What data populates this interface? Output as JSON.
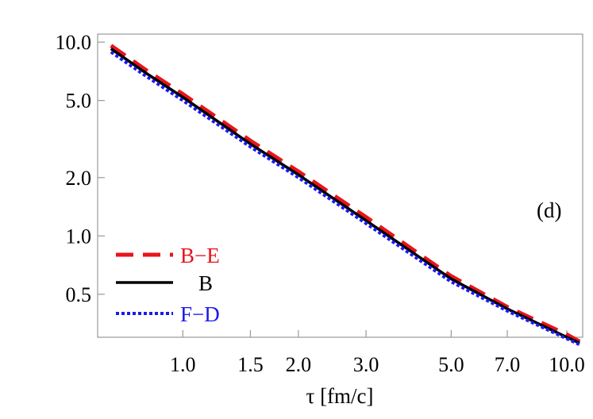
{
  "chart_data": {
    "type": "line",
    "xscale": "log",
    "yscale": "log",
    "xlim": [
      0.6,
      11.0
    ],
    "ylim": [
      0.3,
      11.0
    ],
    "x_ticks": [
      1.0,
      1.5,
      2.0,
      3.0,
      5.0,
      7.0,
      10.0
    ],
    "x_tick_labels": [
      "1.0",
      "1.5",
      "2.0",
      "3.0",
      "5.0",
      "7.0",
      "10.0"
    ],
    "y_ticks": [
      0.5,
      1.0,
      2.0,
      5.0,
      10.0
    ],
    "y_tick_labels": [
      "0.5",
      "1.0",
      "2.0",
      "5.0",
      "10.0"
    ],
    "xlabel": "τ [fm/c]",
    "ylabel": "",
    "annotation": "(d)",
    "grid": false,
    "legend_position": "bottom-left",
    "series": [
      {
        "name": "B−E",
        "color": "#e8141b",
        "style": "dashed",
        "x": [
          0.65,
          0.8,
          1.0,
          1.5,
          2.0,
          3.0,
          5.0,
          7.0,
          10.0,
          10.8
        ],
        "y": [
          9.6,
          7.2,
          5.4,
          3.1,
          2.15,
          1.25,
          0.62,
          0.43,
          0.31,
          0.285
        ]
      },
      {
        "name": "B",
        "color": "#000000",
        "style": "solid",
        "x": [
          0.65,
          0.8,
          1.0,
          1.5,
          2.0,
          3.0,
          5.0,
          7.0,
          10.0,
          10.8
        ],
        "y": [
          9.25,
          6.95,
          5.2,
          2.98,
          2.07,
          1.2,
          0.6,
          0.42,
          0.3,
          0.28
        ]
      },
      {
        "name": "F−D",
        "color": "#1a1aee",
        "style": "dotted",
        "x": [
          0.65,
          0.8,
          1.0,
          1.5,
          2.0,
          3.0,
          5.0,
          7.0,
          10.0,
          10.8
        ],
        "y": [
          8.9,
          6.7,
          5.0,
          2.88,
          2.0,
          1.16,
          0.58,
          0.41,
          0.295,
          0.275
        ]
      }
    ]
  }
}
